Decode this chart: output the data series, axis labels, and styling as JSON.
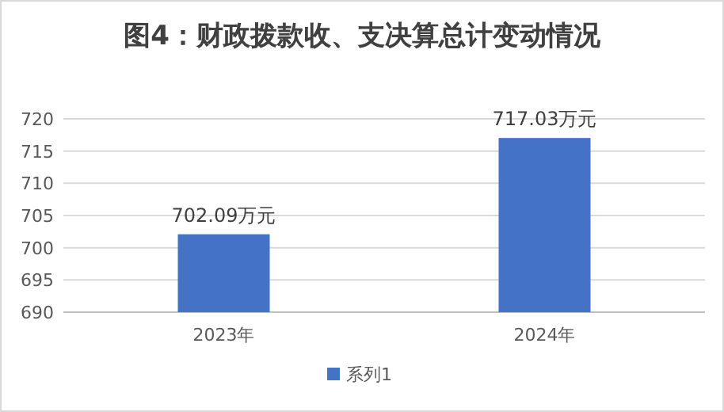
{
  "chart_data": {
    "type": "bar",
    "title": "图4：财政拨款收、支决算总计变动情况",
    "categories": [
      "2023年",
      "2024年"
    ],
    "series": [
      {
        "name": "系列1",
        "color": "#4472c4",
        "values": [
          702.09,
          717.03
        ],
        "value_labels": [
          "702.09万元",
          "717.03万元"
        ]
      }
    ],
    "ylim": [
      690,
      720
    ],
    "yticks": [
      690,
      695,
      700,
      705,
      710,
      715,
      720
    ],
    "grid": "y",
    "legend": "bottom"
  }
}
